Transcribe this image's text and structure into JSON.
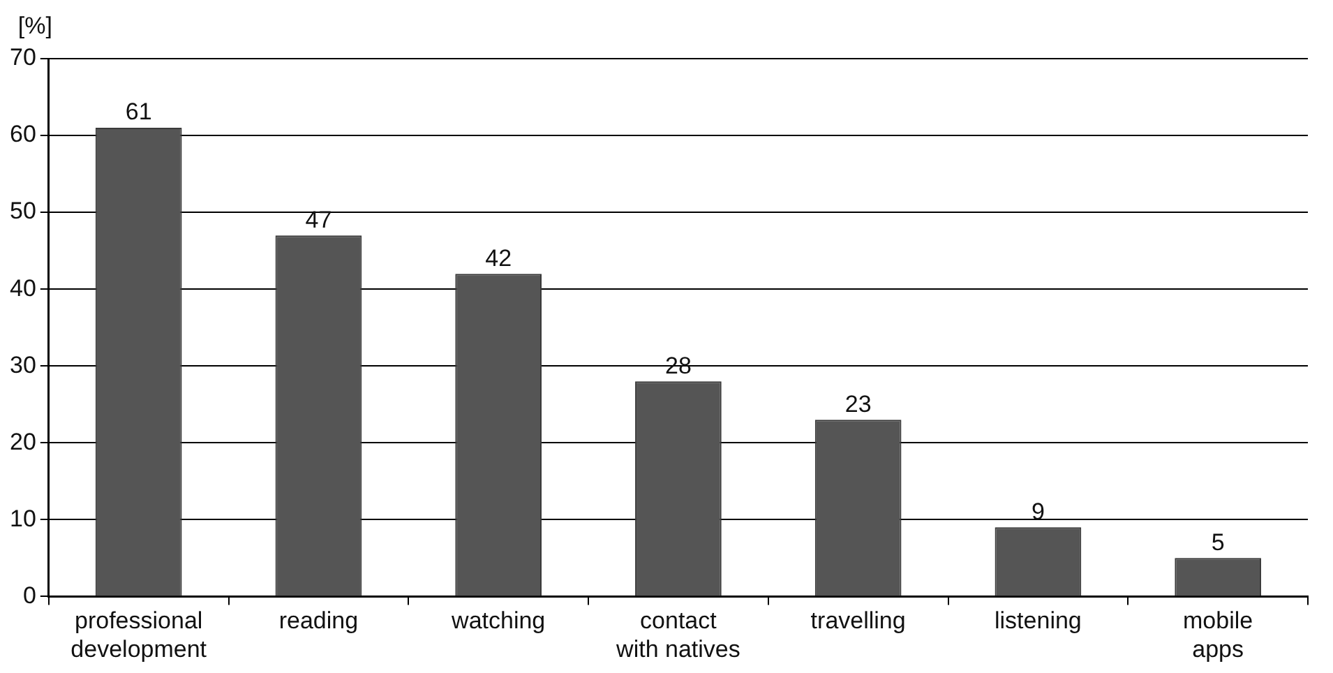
{
  "chart_data": {
    "type": "bar",
    "ylabel": "[%]",
    "categories": [
      "professional development",
      "reading",
      "watching",
      "contact with natives",
      "travelling",
      "listening",
      "mobile apps"
    ],
    "values": [
      61,
      47,
      42,
      28,
      23,
      9,
      5
    ],
    "color": "#555555",
    "ylim": [
      0,
      70
    ],
    "yticks": [
      0,
      10,
      20,
      30,
      40,
      50,
      60,
      70
    ],
    "grid": "y",
    "data_labels": true,
    "legend": false
  }
}
